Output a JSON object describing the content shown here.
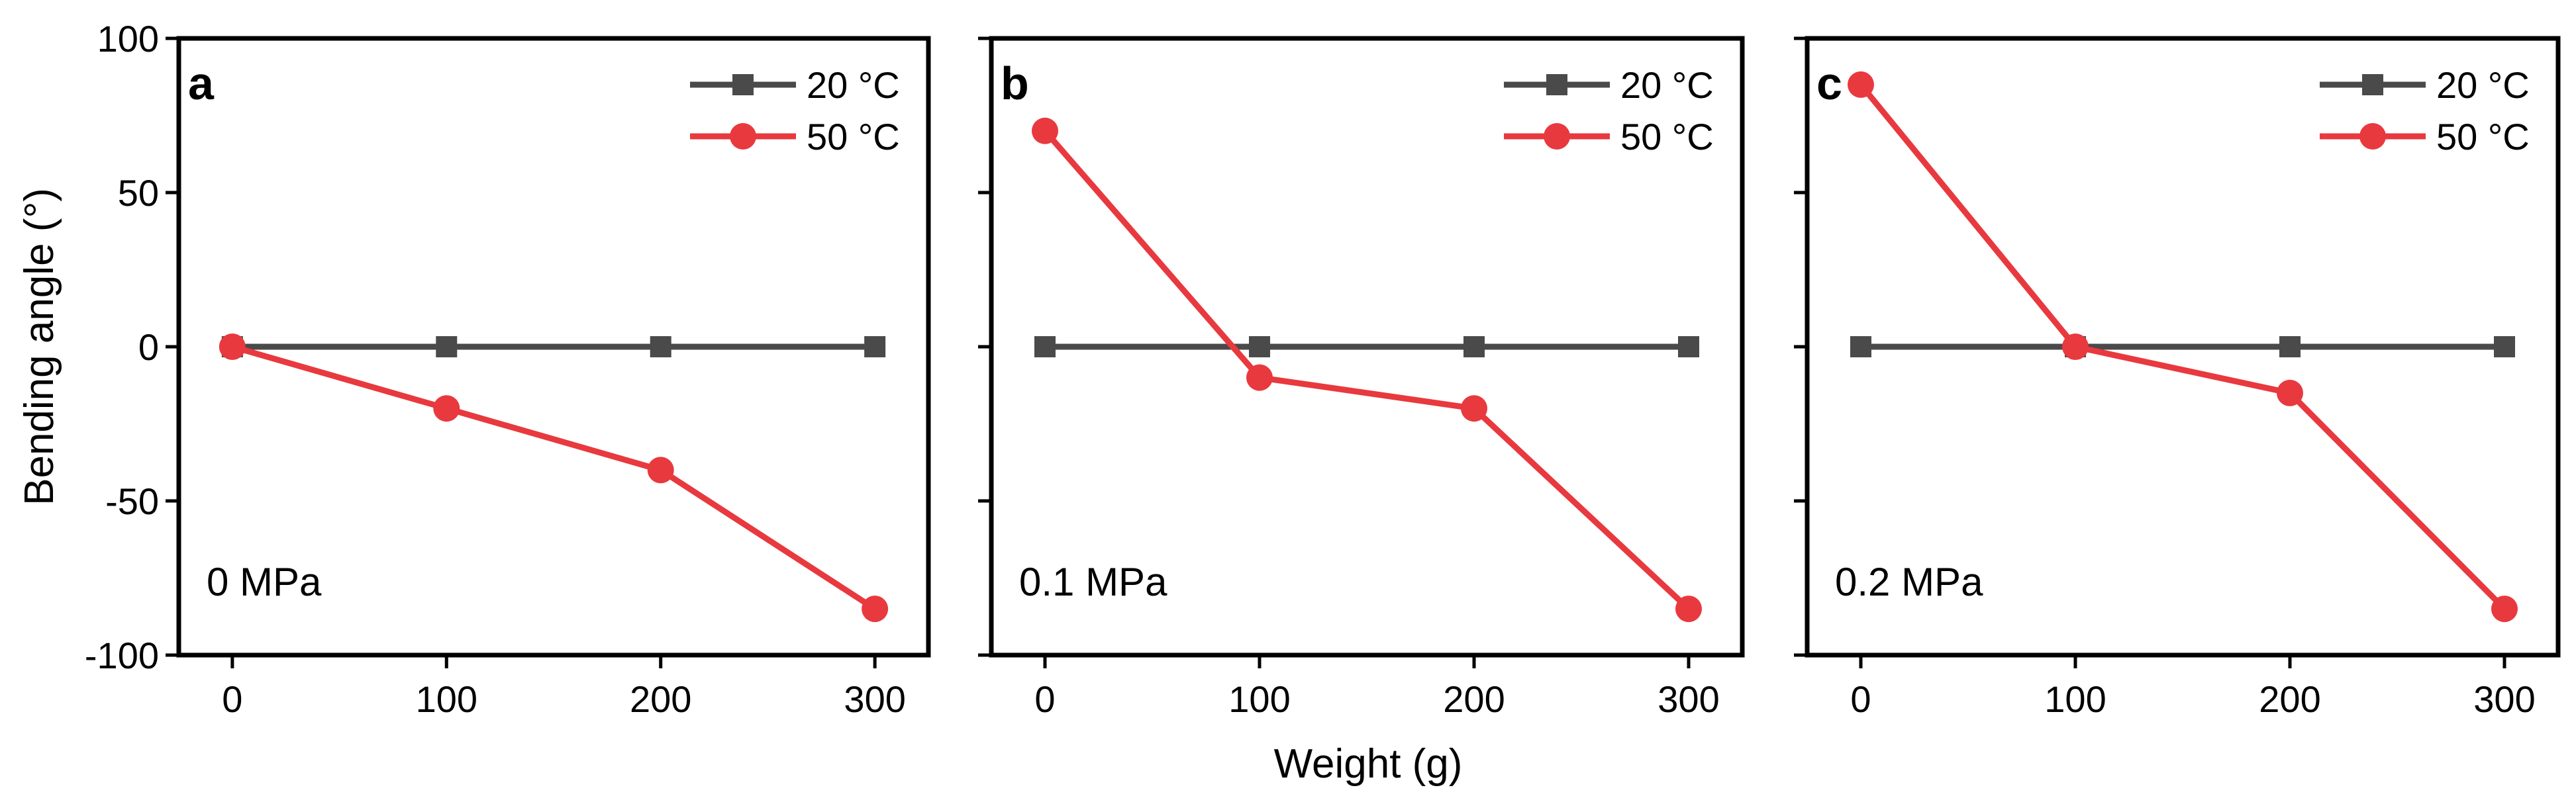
{
  "chart_data": [
    {
      "type": "line",
      "panel": "a",
      "annotation": "0 MPa",
      "x": [
        0,
        100,
        200,
        300
      ],
      "series": [
        {
          "name": "20 °C",
          "values": [
            0,
            0,
            0,
            0
          ],
          "color": "#4a4a4a",
          "marker": "square"
        },
        {
          "name": "50 °C",
          "values": [
            0,
            -20,
            -40,
            -85
          ],
          "color": "#e8393f",
          "marker": "circle"
        }
      ],
      "xlabel": "Weight (g)",
      "ylabel": "Bending angle (°)",
      "xticks": [
        "0",
        "100",
        "200",
        "300"
      ],
      "yticks": [
        "100",
        "50",
        "0",
        "-50",
        "-100"
      ],
      "xlim": [
        -25,
        325
      ],
      "ylim": [
        -100,
        100
      ],
      "legend": "top-right"
    },
    {
      "type": "line",
      "panel": "b",
      "annotation": "0.1 MPa",
      "x": [
        0,
        100,
        200,
        300
      ],
      "series": [
        {
          "name": "20 °C",
          "values": [
            0,
            0,
            0,
            0
          ],
          "color": "#4a4a4a",
          "marker": "square"
        },
        {
          "name": "50 °C",
          "values": [
            70,
            -10,
            -20,
            -85
          ],
          "color": "#e8393f",
          "marker": "circle"
        }
      ],
      "xlabel": "Weight (g)",
      "ylabel": "",
      "xticks": [
        "0",
        "100",
        "200",
        "300"
      ],
      "yticks": [],
      "xlim": [
        -25,
        325
      ],
      "ylim": [
        -100,
        100
      ],
      "legend": "top-right"
    },
    {
      "type": "line",
      "panel": "c",
      "annotation": "0.2 MPa",
      "x": [
        0,
        100,
        200,
        300
      ],
      "series": [
        {
          "name": "20 °C",
          "values": [
            0,
            0,
            0,
            0
          ],
          "color": "#4a4a4a",
          "marker": "square"
        },
        {
          "name": "50 °C",
          "values": [
            85,
            0,
            -15,
            -85
          ],
          "color": "#e8393f",
          "marker": "circle"
        }
      ],
      "xlabel": "Weight (g)",
      "ylabel": "",
      "xticks": [
        "0",
        "100",
        "200",
        "300"
      ],
      "yticks": [],
      "xlim": [
        -25,
        325
      ],
      "ylim": [
        -100,
        100
      ],
      "legend": "top-right"
    }
  ],
  "figure": {
    "xlabel": "Weight (g)",
    "ylabel": "Bending angle (°)"
  }
}
